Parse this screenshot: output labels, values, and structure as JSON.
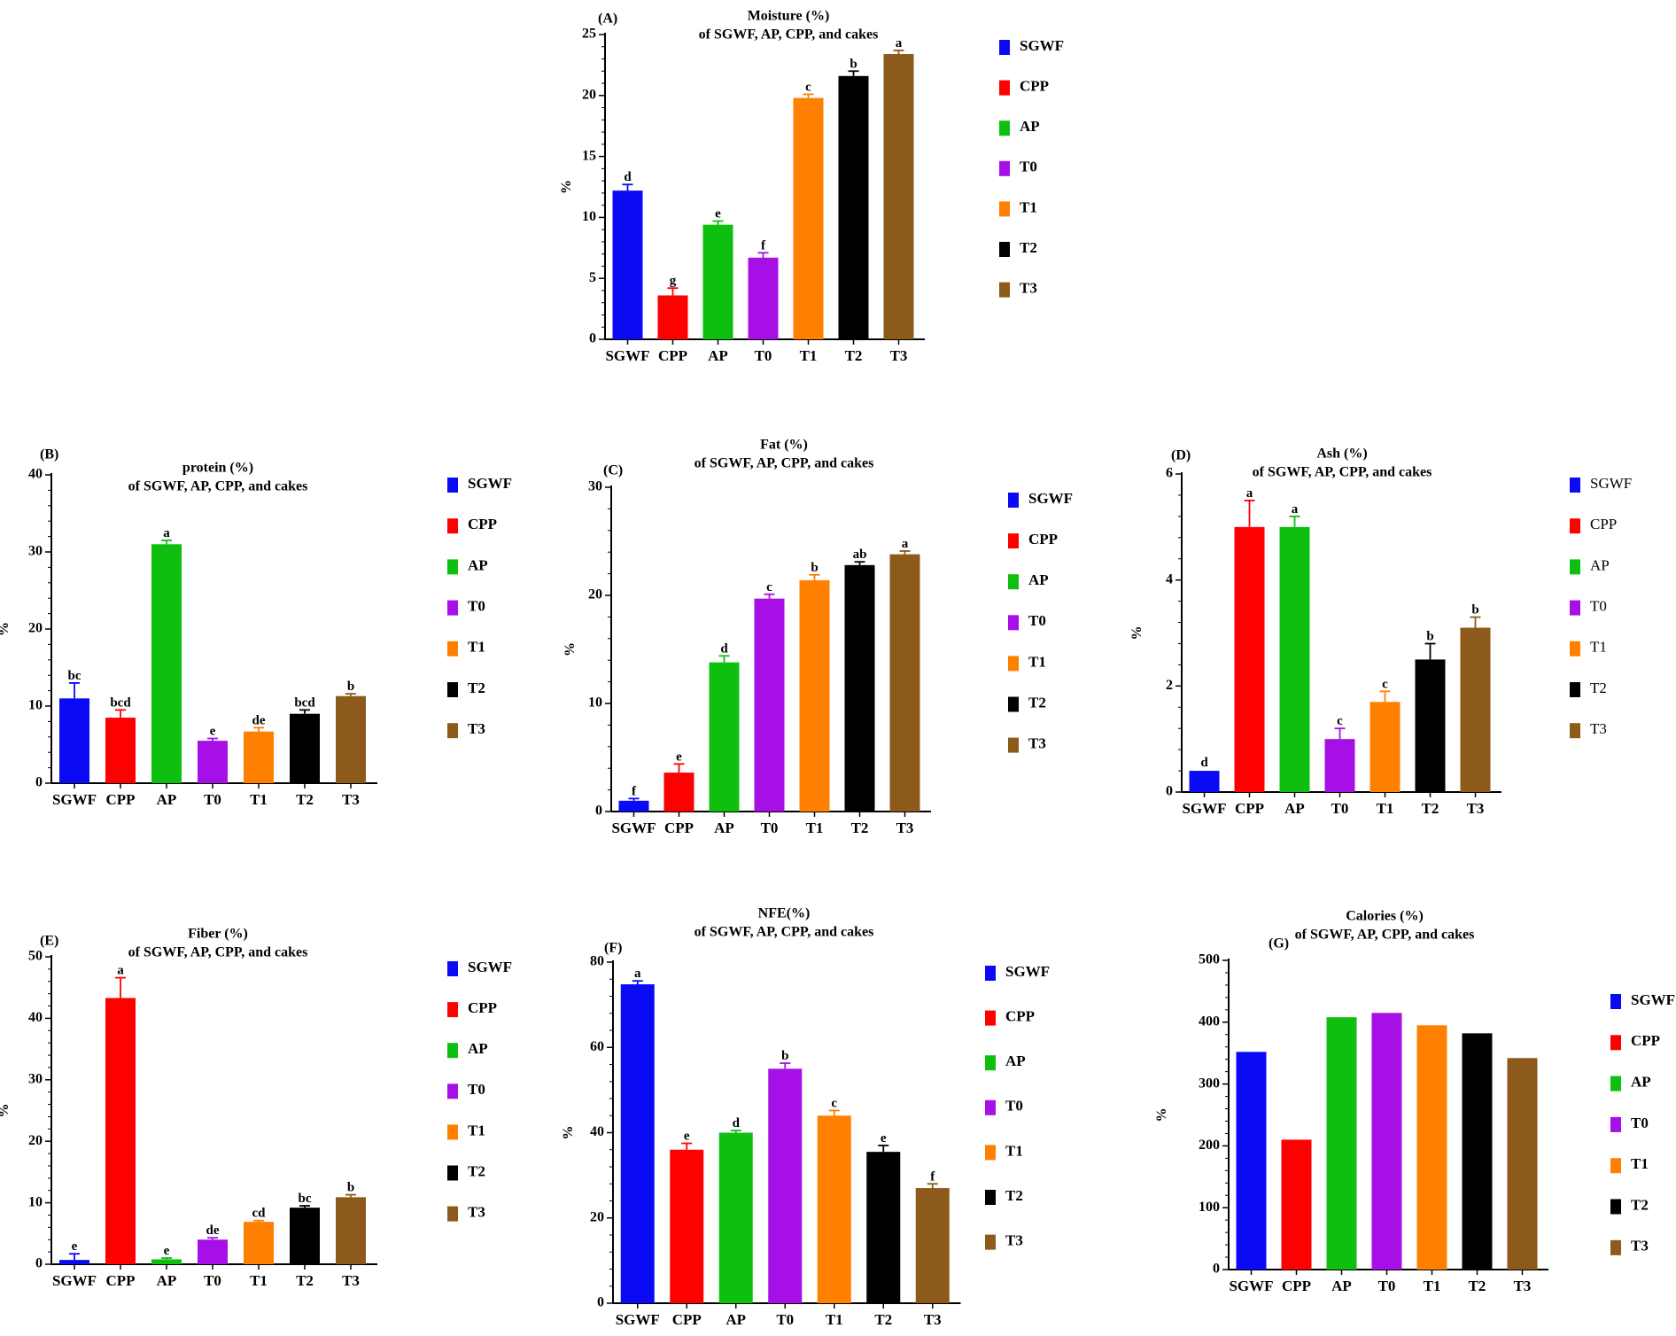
{
  "colors": {
    "SGWF": "#0a0af5",
    "CPP": "#ff0000",
    "AP": "#0fbf0f",
    "T0": "#a60fe6",
    "T1": "#ff8000",
    "T2": "#000000",
    "T3": "#8c5a1a"
  },
  "chart_data": [
    {
      "id": "A",
      "type": "bar",
      "panel_label": "(A)",
      "title": [
        "Moisture (%)",
        "of SGWF, AP, CPP, and cakes"
      ],
      "ylabel": "%",
      "ylim": [
        0,
        25
      ],
      "yticks": [
        0,
        5,
        10,
        15,
        20,
        25
      ],
      "categories": [
        "SGWF",
        "CPP",
        "AP",
        "T0",
        "T1",
        "T2",
        "T3"
      ],
      "values": [
        12.2,
        3.6,
        9.4,
        6.7,
        19.8,
        21.6,
        23.4
      ],
      "errors": [
        0.5,
        0.6,
        0.3,
        0.4,
        0.3,
        0.4,
        0.3
      ],
      "letters": [
        "d",
        "g",
        "e",
        "f",
        "c",
        "b",
        "a"
      ],
      "legend": [
        "SGWF",
        "CPP",
        "AP",
        "T0",
        "T1",
        "T2",
        "T3"
      ],
      "legend_bold": true
    },
    {
      "id": "B",
      "type": "bar",
      "panel_label": "(B)",
      "title": [
        "protein (%)",
        "of SGWF, AP, CPP, and cakes"
      ],
      "ylabel": "%",
      "ylim": [
        0,
        40
      ],
      "yticks": [
        0,
        10,
        20,
        30,
        40
      ],
      "categories": [
        "SGWF",
        "CPP",
        "AP",
        "T0",
        "T1",
        "T2",
        "T3"
      ],
      "values": [
        11.0,
        8.5,
        31.0,
        5.5,
        6.7,
        9.0,
        11.3
      ],
      "errors": [
        2.0,
        1.0,
        0.5,
        0.3,
        0.5,
        0.5,
        0.3
      ],
      "letters": [
        "bc",
        "bcd",
        "a",
        "e",
        "de",
        "bcd",
        "b"
      ],
      "legend": [
        "SGWF",
        "CPP",
        "AP",
        "T0",
        "T1",
        "T2",
        "T3"
      ],
      "legend_bold": true
    },
    {
      "id": "C",
      "type": "bar",
      "panel_label": "(C)",
      "title": [
        "Fat (%)",
        "of SGWF, AP, CPP, and cakes"
      ],
      "ylabel": "%",
      "ylim": [
        0,
        30
      ],
      "yticks": [
        0,
        10,
        20,
        30
      ],
      "categories": [
        "SGWF",
        "CPP",
        "AP",
        "T0",
        "T1",
        "T2",
        "T3"
      ],
      "values": [
        1.0,
        3.6,
        13.8,
        19.7,
        21.4,
        22.8,
        23.8
      ],
      "errors": [
        0.2,
        0.8,
        0.6,
        0.4,
        0.5,
        0.3,
        0.3
      ],
      "letters": [
        "f",
        "e",
        "d",
        "c",
        "b",
        "ab",
        "a"
      ],
      "legend": [
        "SGWF",
        "CPP",
        "AP",
        "T0",
        "T1",
        "T2",
        "T3"
      ],
      "legend_bold": true
    },
    {
      "id": "D",
      "type": "bar",
      "panel_label": "(D)",
      "title": [
        "Ash (%)",
        "of SGWF, AP, CPP, and cakes"
      ],
      "ylabel": "%",
      "ylim": [
        0,
        6
      ],
      "yticks": [
        0,
        2,
        4,
        6
      ],
      "categories": [
        "SGWF",
        "CPP",
        "AP",
        "T0",
        "T1",
        "T2",
        "T3"
      ],
      "values": [
        0.4,
        5.0,
        5.0,
        1.0,
        1.7,
        2.5,
        3.1
      ],
      "errors": [
        0.0,
        0.5,
        0.2,
        0.2,
        0.2,
        0.3,
        0.2
      ],
      "letters": [
        "d",
        "a",
        "a",
        "c",
        "c",
        "b",
        "b"
      ],
      "legend": [
        "SGWF",
        "CPP",
        "AP",
        "T0",
        "T1",
        "T2",
        "T3"
      ],
      "legend_bold": false
    },
    {
      "id": "E",
      "type": "bar",
      "panel_label": "(E)",
      "title": [
        "Fiber (%)",
        "of SGWF, AP, CPP, and cakes"
      ],
      "ylabel": "%",
      "ylim": [
        0,
        50
      ],
      "yticks": [
        0,
        10,
        20,
        30,
        40,
        50
      ],
      "categories": [
        "SGWF",
        "CPP",
        "AP",
        "T0",
        "T1",
        "T2",
        "T3"
      ],
      "values": [
        0.7,
        43.3,
        0.8,
        4.0,
        6.9,
        9.2,
        10.9
      ],
      "errors": [
        1.0,
        3.3,
        0.2,
        0.3,
        0.2,
        0.3,
        0.4
      ],
      "letters": [
        "e",
        "a",
        "e",
        "de",
        "cd",
        "bc",
        "b"
      ],
      "legend": [
        "SGWF",
        "CPP",
        "AP",
        "T0",
        "T1",
        "T2",
        "T3"
      ],
      "legend_bold": true
    },
    {
      "id": "F",
      "type": "bar",
      "panel_label": "(F)",
      "title": [
        "NFE(%)",
        "of SGWF, AP, CPP, and cakes"
      ],
      "ylabel": "%",
      "ylim": [
        0,
        80
      ],
      "yticks": [
        0,
        20,
        40,
        60,
        80
      ],
      "categories": [
        "SGWF",
        "CPP",
        "AP",
        "T0",
        "T1",
        "T2",
        "T3"
      ],
      "values": [
        74.8,
        36.0,
        40.0,
        55.0,
        44.0,
        35.5,
        27.0
      ],
      "errors": [
        0.8,
        1.5,
        0.5,
        1.3,
        1.2,
        1.5,
        1.0
      ],
      "letters": [
        "a",
        "e",
        "d",
        "b",
        "c",
        "e",
        "f"
      ],
      "legend": [
        "SGWF",
        "CPP",
        "AP",
        "T0",
        "T1",
        "T2",
        "T3"
      ],
      "legend_bold": true
    },
    {
      "id": "G",
      "type": "bar",
      "panel_label": "(G)",
      "title": [
        "Calories (%)",
        "of SGWF, AP, CPP, and cakes"
      ],
      "ylabel": "%",
      "ylim": [
        0,
        500
      ],
      "yticks": [
        0,
        100,
        200,
        300,
        400,
        500
      ],
      "categories": [
        "SGWF",
        "CPP",
        "AP",
        "T0",
        "T1",
        "T2",
        "T3"
      ],
      "values": [
        352,
        210,
        408,
        415,
        395,
        382,
        342
      ],
      "errors": [
        0,
        0,
        0,
        0,
        0,
        0,
        0
      ],
      "letters": [
        "",
        "",
        "",
        "",
        "",
        "",
        ""
      ],
      "legend": [
        "SGWF",
        "CPP",
        "AP",
        "T0",
        "T1",
        "T2",
        "T3"
      ],
      "legend_bold": true
    }
  ]
}
